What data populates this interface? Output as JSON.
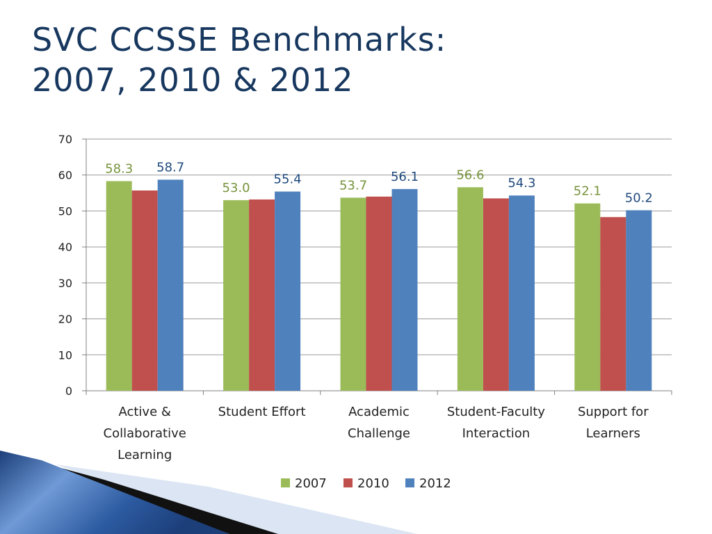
{
  "slide": {
    "title_line1": "SVC CCSSE Benchmarks:",
    "title_line2": "2007, 2010 & 2012"
  },
  "colors": {
    "series_2007": "#9bbb59",
    "series_2010": "#c0504d",
    "series_2012": "#4f81bd",
    "label_2007": "#77933c",
    "label_2012": "#1f497d",
    "title": "#17375e",
    "swoosh_dark": "#1c3f7a",
    "swoosh_light": "#6f9ad6"
  },
  "chart_data": {
    "type": "bar",
    "title": "",
    "xlabel": "",
    "ylabel": "",
    "ylim": [
      0,
      70
    ],
    "yticks": [
      0,
      10,
      20,
      30,
      40,
      50,
      60,
      70
    ],
    "grid": true,
    "legend_position": "bottom",
    "categories": [
      [
        "Active &",
        "Collaborative",
        "Learning"
      ],
      [
        "Student Effort"
      ],
      [
        "Academic",
        "Challenge"
      ],
      [
        "Student-Faculty",
        "Interaction"
      ],
      [
        "Support for",
        "Learners"
      ]
    ],
    "series": [
      {
        "name": "2007",
        "values": [
          58.3,
          53.0,
          53.7,
          56.6,
          52.1
        ]
      },
      {
        "name": "2010",
        "values": [
          55.7,
          53.2,
          54.0,
          53.5,
          48.3
        ]
      },
      {
        "name": "2012",
        "values": [
          58.7,
          55.4,
          56.1,
          54.3,
          50.2
        ]
      }
    ],
    "data_labels": [
      {
        "series": 0,
        "labels": [
          "58.3",
          "53.0",
          "53.7",
          "56.6",
          "52.1"
        ]
      },
      {
        "series": 2,
        "labels": [
          "58.7",
          "55.4",
          "56.1",
          "54.3",
          "50.2"
        ]
      }
    ]
  }
}
